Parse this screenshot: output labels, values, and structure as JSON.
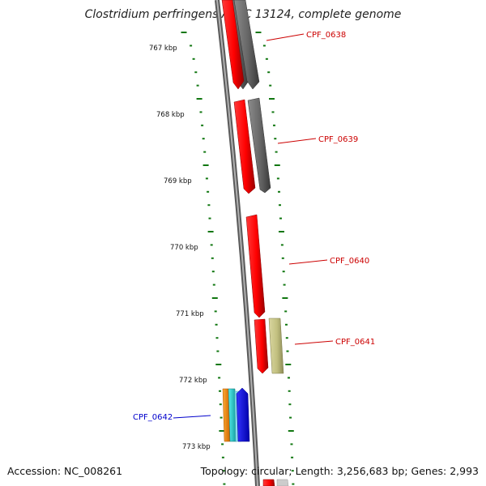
{
  "title": "Clostridium perfringens ATCC 13124, complete genome",
  "footer": {
    "accession": "Accession: NC_008261",
    "topology": "Topology: circular; Length: 3,256,683 bp; Genes: 2,993"
  },
  "kbp_labels": [
    "767 kbp",
    "768 kbp",
    "769 kbp",
    "770 kbp",
    "771 kbp",
    "772 kbp",
    "773 kbp"
  ],
  "gene_labels": [
    {
      "name": "CPF_0638",
      "color": "#cc0000"
    },
    {
      "name": "CPF_0639",
      "color": "#cc0000"
    },
    {
      "name": "CPF_0640",
      "color": "#cc0000"
    },
    {
      "name": "CPF_0641",
      "color": "#cc0000"
    },
    {
      "name": "CPF_0642",
      "color": "#0000cc"
    }
  ],
  "colors": {
    "backbone": "#888888",
    "tick": "#117711",
    "red_feature": "#ff0000",
    "gray_feature": "#666666",
    "olive_feature": "#c2c080",
    "orange_feature": "#ff8800",
    "cyan_feature": "#22cccc",
    "blue_feature": "#0000ff"
  }
}
